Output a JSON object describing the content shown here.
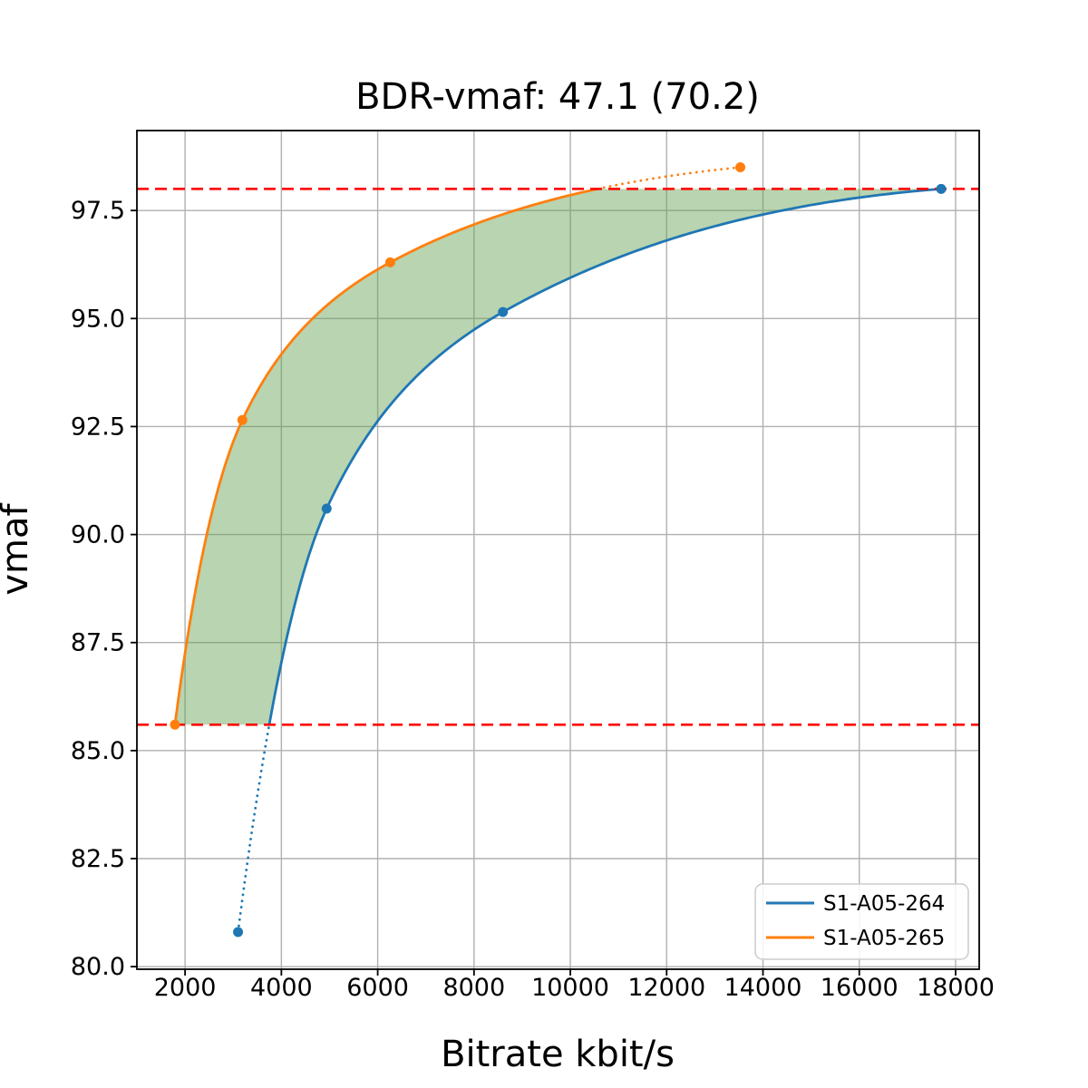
{
  "figure": {
    "title": "BDR-vmaf: 47.1 (70.2)",
    "xlabel": "Bitrate kbit/s",
    "ylabel": "vmaf"
  },
  "chart_data": {
    "type": "line",
    "title": "BDR-vmaf: 47.1 (70.2)",
    "xlabel": "Bitrate kbit/s",
    "ylabel": "vmaf",
    "xlim": [
      1000,
      18490
    ],
    "ylim": [
      79.94,
      99.35
    ],
    "xticks": [
      2000,
      4000,
      6000,
      8000,
      10000,
      12000,
      14000,
      16000,
      18000
    ],
    "yticks": [
      80.0,
      82.5,
      85.0,
      87.5,
      90.0,
      92.5,
      95.0,
      97.5
    ],
    "grid": true,
    "legend_position": "lower right",
    "series": [
      {
        "name": "S1-A05-264",
        "color": "#1f77b4",
        "marker": "circle",
        "interpolation": "pchip-logx",
        "points": [
          [
            3100,
            80.8
          ],
          [
            4940,
            90.6
          ],
          [
            8600,
            95.15
          ],
          [
            17700,
            98.0
          ]
        ],
        "dotted_below_vmaf": 85.6
      },
      {
        "name": "S1-A05-265",
        "color": "#ff7f0e",
        "marker": "circle",
        "interpolation": "pchip-logx",
        "points": [
          [
            1790,
            85.6
          ],
          [
            3190,
            92.65
          ],
          [
            6260,
            96.3
          ],
          [
            13530,
            98.5
          ]
        ],
        "dotted_above_vmaf": 98.0
      }
    ],
    "hlines": {
      "values": [
        98.0,
        85.6
      ],
      "color": "#ff0000",
      "style": "dashed"
    },
    "shaded_region": {
      "between": "the two rate-distortion curves",
      "vmaf_range": [
        85.6,
        98.0
      ],
      "color": "rgba(100,160,80,0.45)"
    }
  },
  "colors": {
    "grid": "#b0b0b0",
    "spine": "#000000",
    "background": "#ffffff",
    "legend_border": "#cccccc"
  }
}
